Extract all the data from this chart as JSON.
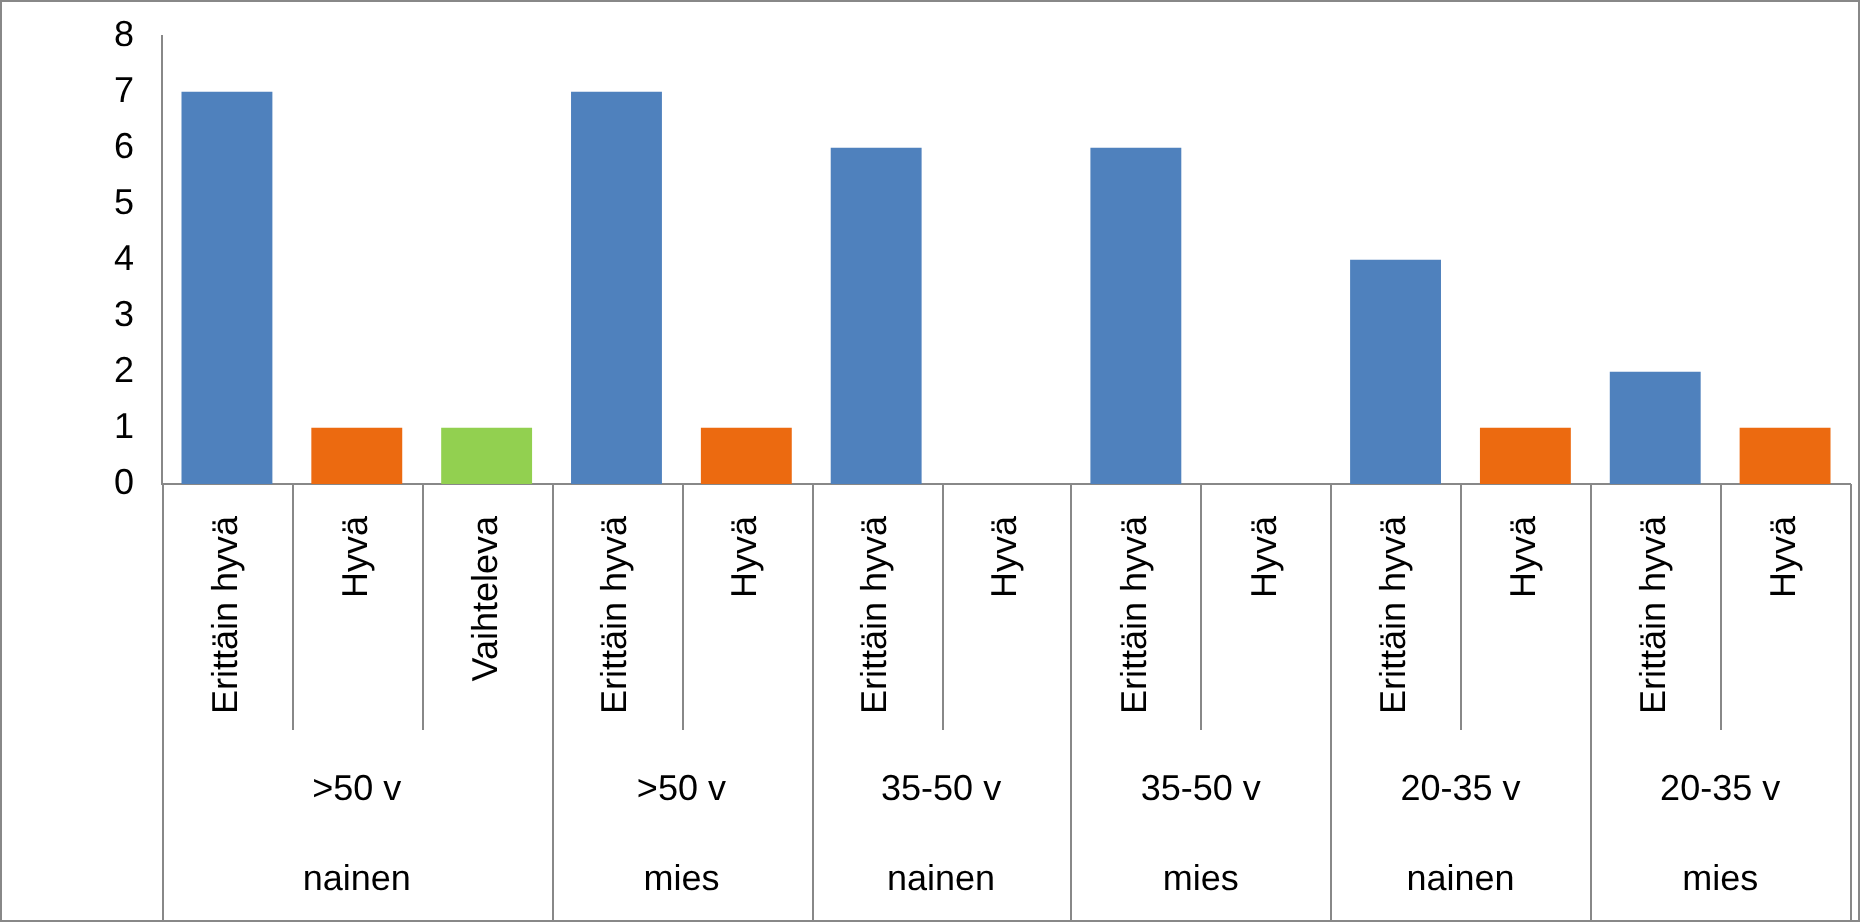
{
  "chart_data": {
    "type": "bar",
    "categories": [
      "Erittäin hyvä",
      "Hyvä",
      "Vaihteleva",
      "Erittäin hyvä",
      "Hyvä",
      "Erittäin hyvä",
      "Hyvä",
      "Erittäin hyvä",
      "Hyvä",
      "Erittäin hyvä",
      "Hyvä",
      "Erittäin hyvä",
      "Hyvä"
    ],
    "values": [
      7,
      1,
      1,
      7,
      1,
      6,
      0,
      6,
      0,
      4,
      1,
      2,
      1
    ],
    "colors": [
      "#4f81bd",
      "#ec6a10",
      "#92d050",
      "#4f81bd",
      "#ec6a10",
      "#4f81bd",
      "#ec6a10",
      "#4f81bd",
      "#ec6a10",
      "#4f81bd",
      "#ec6a10",
      "#4f81bd",
      "#ec6a10"
    ],
    "ylim": [
      0,
      8
    ],
    "yticks": [
      0,
      1,
      2,
      3,
      4,
      5,
      6,
      7,
      8
    ],
    "annotations": [
      ">50 v",
      ">50 v",
      "35-50 v",
      "35-50 v",
      "20-35 v",
      "20-35 v",
      "nainen",
      "mies",
      "nainen",
      "mies",
      "nainen",
      "mies"
    ]
  }
}
